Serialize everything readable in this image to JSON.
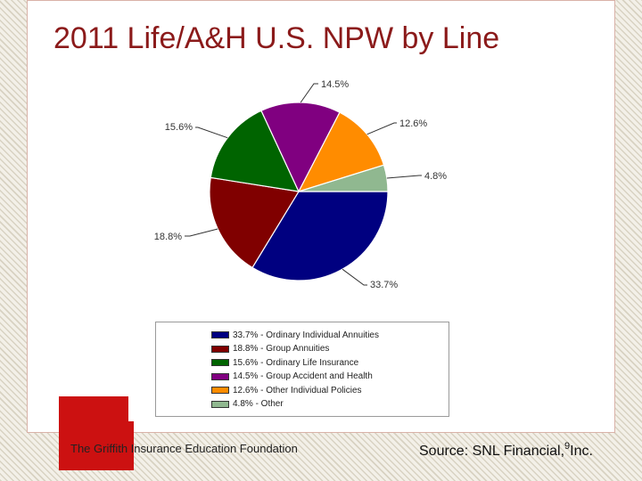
{
  "title": "2011 Life/A&H U.S. NPW by Line",
  "footer": {
    "organization": "The Griffith Insurance Education Foundation",
    "source_prefix": "Source: SNL Financial,",
    "page_number": "9",
    "source_suffix": "Inc."
  },
  "colors": {
    "title": "#8b1a1a",
    "accent_block": "#cc1111"
  },
  "chart_data": {
    "type": "pie",
    "title": "",
    "slices": [
      {
        "label": "Ordinary Individual Annuities",
        "value": 33.7,
        "value_label": "33.7%",
        "legend_text": "33.7% - Ordinary Individual Annuities",
        "color": "#000080"
      },
      {
        "label": "Group Annuities",
        "value": 18.8,
        "value_label": "18.8%",
        "legend_text": "18.8% - Group Annuities",
        "color": "#800000"
      },
      {
        "label": "Ordinary Life Insurance",
        "value": 15.6,
        "value_label": "15.6%",
        "legend_text": "15.6% - Ordinary Life Insurance",
        "color": "#006400"
      },
      {
        "label": "Group Accident and Health",
        "value": 14.5,
        "value_label": "14.5%",
        "legend_text": "14.5% - Group Accident and Health",
        "color": "#800080"
      },
      {
        "label": "Other Individual Policies",
        "value": 12.6,
        "value_label": "12.6%",
        "legend_text": "12.6% - Other Individual Policies",
        "color": "#ff8c00"
      },
      {
        "label": "Other",
        "value": 4.8,
        "value_label": "4.8%",
        "legend_text": "4.8% - Other",
        "color": "#90b890"
      }
    ],
    "legend_position": "bottom"
  }
}
